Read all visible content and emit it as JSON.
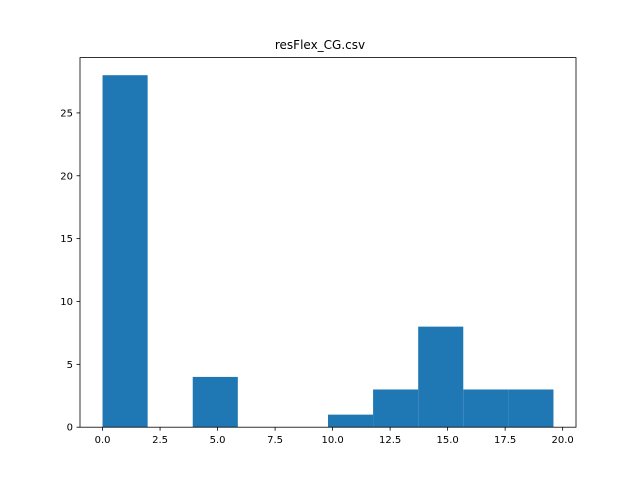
{
  "chart_data": {
    "type": "bar",
    "title": "resFlex_CG.csv",
    "xlabel": "",
    "ylabel": "",
    "bins": [
      {
        "start": 0.0,
        "end": 1.96,
        "count": 28
      },
      {
        "start": 1.96,
        "end": 3.92,
        "count": 0
      },
      {
        "start": 3.92,
        "end": 5.88,
        "count": 4
      },
      {
        "start": 5.88,
        "end": 7.84,
        "count": 0
      },
      {
        "start": 7.84,
        "end": 9.8,
        "count": 0
      },
      {
        "start": 9.8,
        "end": 11.76,
        "count": 1
      },
      {
        "start": 11.76,
        "end": 13.72,
        "count": 3
      },
      {
        "start": 13.72,
        "end": 15.68,
        "count": 8
      },
      {
        "start": 15.68,
        "end": 17.64,
        "count": 3
      },
      {
        "start": 17.64,
        "end": 19.6,
        "count": 3
      }
    ],
    "xlim": [
      -0.98,
      20.58
    ],
    "ylim": [
      0,
      29.4
    ],
    "xticks": [
      0,
      2.5,
      5,
      7.5,
      10,
      12.5,
      15,
      17.5,
      20
    ],
    "xtick_labels": [
      "0.0",
      "2.5",
      "5.0",
      "7.5",
      "10.0",
      "12.5",
      "15.0",
      "17.5",
      "20.0"
    ],
    "yticks": [
      0,
      5,
      10,
      15,
      20,
      25
    ],
    "ytick_labels": [
      "0",
      "5",
      "10",
      "15",
      "20",
      "25"
    ],
    "grid": false,
    "colors": {
      "bar": "#1f77b4",
      "axes": "#000000",
      "background": "#ffffff"
    }
  }
}
